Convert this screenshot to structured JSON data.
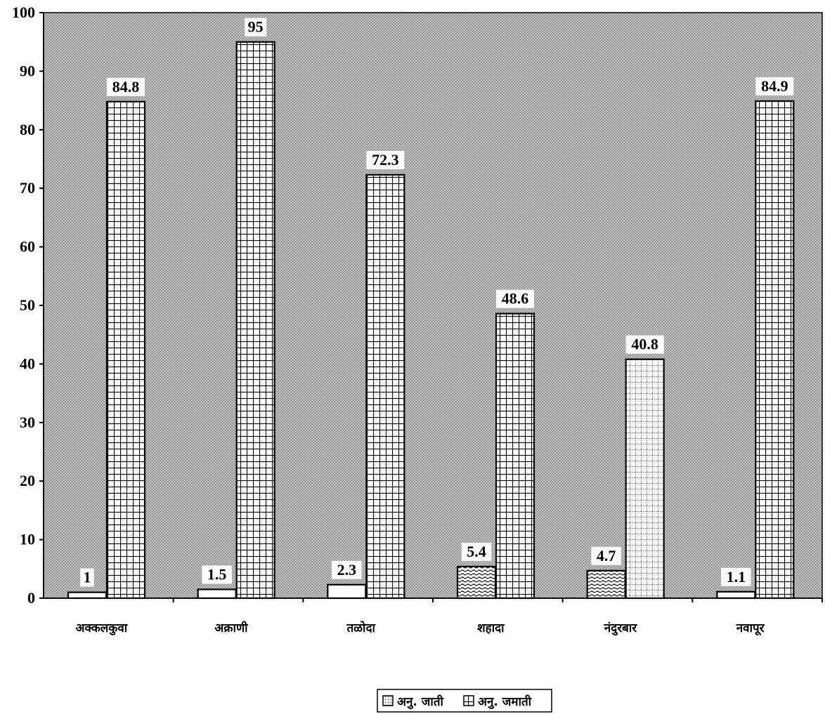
{
  "chart_data": {
    "type": "bar",
    "categories": [
      "अक्कलकुवा",
      "अक्राणी",
      "तळोदा",
      "शहादा",
      "नंदुरबार",
      "नवापूर"
    ],
    "series": [
      {
        "name": "अनु. जाती",
        "values": [
          1,
          1.5,
          2.3,
          5.4,
          4.7,
          1.1
        ],
        "data_labels": [
          "1",
          "1.5",
          "2.3",
          "5.4",
          "4.7",
          "1.1"
        ]
      },
      {
        "name": "अनु. जमाती",
        "values": [
          84.8,
          95,
          72.3,
          48.6,
          40.8,
          84.9
        ],
        "data_labels": [
          "84.8",
          "95",
          "72.3",
          "48.6",
          "40.8",
          "84.9"
        ]
      }
    ],
    "y_ticks": [
      "0",
      "10",
      "20",
      "30",
      "40",
      "50",
      "60",
      "70",
      "80",
      "90",
      "100"
    ],
    "ylim": [
      0,
      100
    ],
    "title": "",
    "xlabel": "",
    "ylabel": "",
    "grid": false,
    "legend_position": "bottom-center",
    "colors": {
      "plot_background": "#a8a8a8",
      "bar_fill": "#ffffff",
      "bar_pattern": "#000000",
      "label_background": "#ffffff"
    }
  }
}
